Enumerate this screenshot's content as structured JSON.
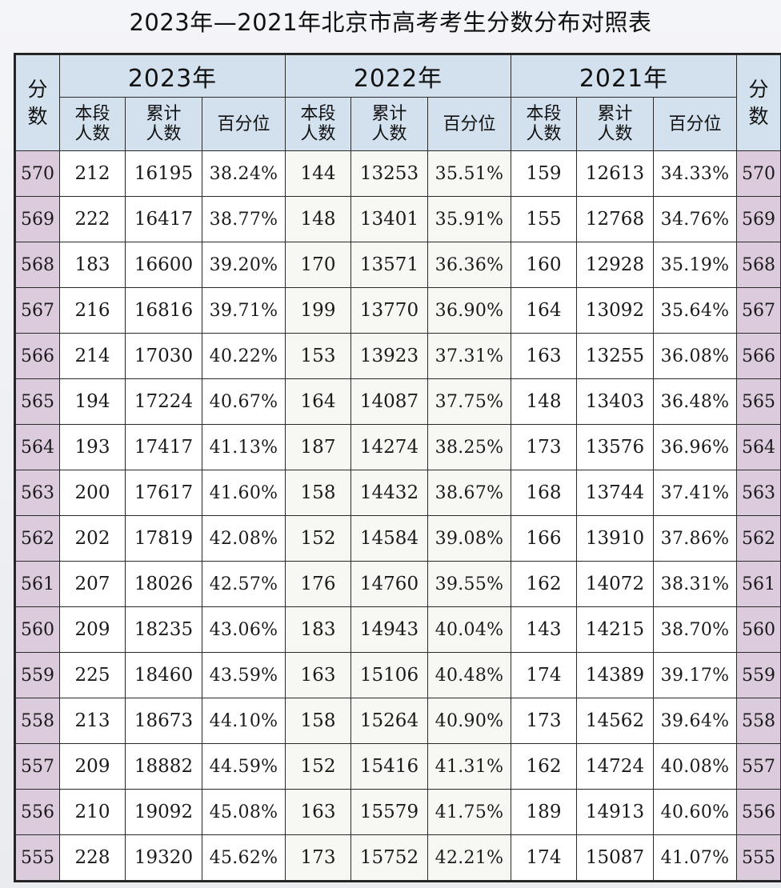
{
  "title": "2023年—2021年北京市高考考生分数分布对照表",
  "header": {
    "score_label_top": "分",
    "score_label_bottom": "数",
    "years": [
      "2023年",
      "2022年",
      "2021年"
    ],
    "seg_label": [
      "本段",
      "人数"
    ],
    "cum_label": [
      "累计",
      "人数"
    ],
    "pct_label": "百分位"
  },
  "rows": [
    {
      "score": "570",
      "y2023": [
        "212",
        "16195",
        "38.24%"
      ],
      "y2022": [
        "144",
        "13253",
        "35.51%"
      ],
      "y2021": [
        "159",
        "12613",
        "34.33%"
      ]
    },
    {
      "score": "569",
      "y2023": [
        "222",
        "16417",
        "38.77%"
      ],
      "y2022": [
        "148",
        "13401",
        "35.91%"
      ],
      "y2021": [
        "155",
        "12768",
        "34.76%"
      ]
    },
    {
      "score": "568",
      "y2023": [
        "183",
        "16600",
        "39.20%"
      ],
      "y2022": [
        "170",
        "13571",
        "36.36%"
      ],
      "y2021": [
        "160",
        "12928",
        "35.19%"
      ]
    },
    {
      "score": "567",
      "y2023": [
        "216",
        "16816",
        "39.71%"
      ],
      "y2022": [
        "199",
        "13770",
        "36.90%"
      ],
      "y2021": [
        "164",
        "13092",
        "35.64%"
      ]
    },
    {
      "score": "566",
      "y2023": [
        "214",
        "17030",
        "40.22%"
      ],
      "y2022": [
        "153",
        "13923",
        "37.31%"
      ],
      "y2021": [
        "163",
        "13255",
        "36.08%"
      ]
    },
    {
      "score": "565",
      "y2023": [
        "194",
        "17224",
        "40.67%"
      ],
      "y2022": [
        "164",
        "14087",
        "37.75%"
      ],
      "y2021": [
        "148",
        "13403",
        "36.48%"
      ]
    },
    {
      "score": "564",
      "y2023": [
        "193",
        "17417",
        "41.13%"
      ],
      "y2022": [
        "187",
        "14274",
        "38.25%"
      ],
      "y2021": [
        "173",
        "13576",
        "36.96%"
      ]
    },
    {
      "score": "563",
      "y2023": [
        "200",
        "17617",
        "41.60%"
      ],
      "y2022": [
        "158",
        "14432",
        "38.67%"
      ],
      "y2021": [
        "168",
        "13744",
        "37.41%"
      ]
    },
    {
      "score": "562",
      "y2023": [
        "202",
        "17819",
        "42.08%"
      ],
      "y2022": [
        "152",
        "14584",
        "39.08%"
      ],
      "y2021": [
        "166",
        "13910",
        "37.86%"
      ]
    },
    {
      "score": "561",
      "y2023": [
        "207",
        "18026",
        "42.57%"
      ],
      "y2022": [
        "176",
        "14760",
        "39.55%"
      ],
      "y2021": [
        "162",
        "14072",
        "38.31%"
      ]
    },
    {
      "score": "560",
      "y2023": [
        "209",
        "18235",
        "43.06%"
      ],
      "y2022": [
        "183",
        "14943",
        "40.04%"
      ],
      "y2021": [
        "143",
        "14215",
        "38.70%"
      ]
    },
    {
      "score": "559",
      "y2023": [
        "225",
        "18460",
        "43.59%"
      ],
      "y2022": [
        "163",
        "15106",
        "40.48%"
      ],
      "y2021": [
        "174",
        "14389",
        "39.17%"
      ]
    },
    {
      "score": "558",
      "y2023": [
        "213",
        "18673",
        "44.10%"
      ],
      "y2022": [
        "158",
        "15264",
        "40.90%"
      ],
      "y2021": [
        "173",
        "14562",
        "39.64%"
      ]
    },
    {
      "score": "557",
      "y2023": [
        "209",
        "18882",
        "44.59%"
      ],
      "y2022": [
        "152",
        "15416",
        "41.31%"
      ],
      "y2021": [
        "162",
        "14724",
        "40.08%"
      ]
    },
    {
      "score": "556",
      "y2023": [
        "210",
        "19092",
        "45.08%"
      ],
      "y2022": [
        "163",
        "15579",
        "41.75%"
      ],
      "y2021": [
        "189",
        "14913",
        "40.60%"
      ]
    },
    {
      "score": "555",
      "y2023": [
        "228",
        "19320",
        "45.62%"
      ],
      "y2022": [
        "173",
        "15752",
        "42.21%"
      ],
      "y2021": [
        "174",
        "15087",
        "41.07%"
      ]
    }
  ],
  "colors": {
    "header_bg": "#d3e1ee",
    "score_col_bg": "#dccbdd",
    "border": "#2a2a2a"
  }
}
